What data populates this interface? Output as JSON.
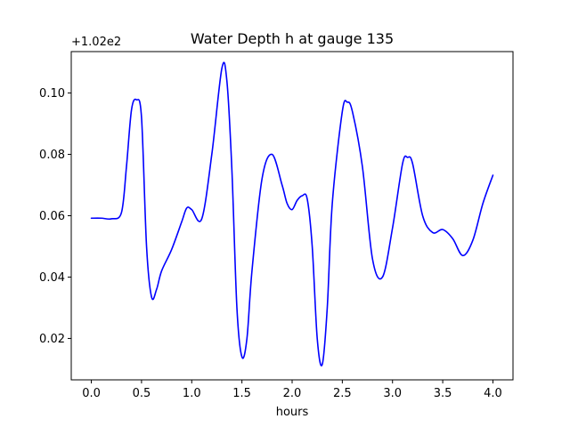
{
  "chart_data": {
    "type": "line",
    "title": "Water Depth h at gauge 135",
    "xlabel": "hours",
    "ylabel": "",
    "y_offset_label": "+1.02e2",
    "xlim": [
      -0.2,
      4.2
    ],
    "ylim": [
      0.0065,
      0.1135
    ],
    "x_ticks": [
      0.0,
      0.5,
      1.0,
      1.5,
      2.0,
      2.5,
      3.0,
      3.5,
      4.0
    ],
    "x_tick_labels": [
      "0.0",
      "0.5",
      "1.0",
      "1.5",
      "2.0",
      "2.5",
      "3.0",
      "3.5",
      "4.0"
    ],
    "y_ticks": [
      0.02,
      0.04,
      0.06,
      0.08,
      0.1
    ],
    "y_tick_labels": [
      "0.02",
      "0.04",
      "0.06",
      "0.08",
      "0.10"
    ],
    "grid": false,
    "series": [
      {
        "color": "#0000ff",
        "x": [
          0.0,
          0.1,
          0.2,
          0.3,
          0.35,
          0.4,
          0.45,
          0.5,
          0.55,
          0.6,
          0.65,
          0.7,
          0.8,
          0.9,
          0.95,
          1.0,
          1.1,
          1.2,
          1.3,
          1.35,
          1.4,
          1.45,
          1.5,
          1.55,
          1.6,
          1.7,
          1.8,
          1.9,
          1.95,
          2.0,
          2.05,
          2.1,
          2.15,
          2.2,
          2.25,
          2.3,
          2.35,
          2.4,
          2.5,
          2.55,
          2.6,
          2.7,
          2.8,
          2.9,
          3.0,
          3.1,
          3.15,
          3.2,
          3.3,
          3.4,
          3.5,
          3.6,
          3.7,
          3.8,
          3.9,
          4.0
        ],
        "y": [
          0.0592,
          0.0592,
          0.059,
          0.061,
          0.076,
          0.0945,
          0.0978,
          0.092,
          0.05,
          0.0335,
          0.036,
          0.042,
          0.049,
          0.058,
          0.0625,
          0.062,
          0.059,
          0.08,
          0.108,
          0.104,
          0.075,
          0.03,
          0.014,
          0.02,
          0.042,
          0.072,
          0.08,
          0.07,
          0.064,
          0.062,
          0.065,
          0.0665,
          0.0655,
          0.05,
          0.02,
          0.0115,
          0.03,
          0.064,
          0.094,
          0.097,
          0.094,
          0.076,
          0.046,
          0.04,
          0.056,
          0.077,
          0.079,
          0.077,
          0.06,
          0.0545,
          0.0555,
          0.0525,
          0.047,
          0.052,
          0.064,
          0.0732
        ]
      }
    ]
  }
}
